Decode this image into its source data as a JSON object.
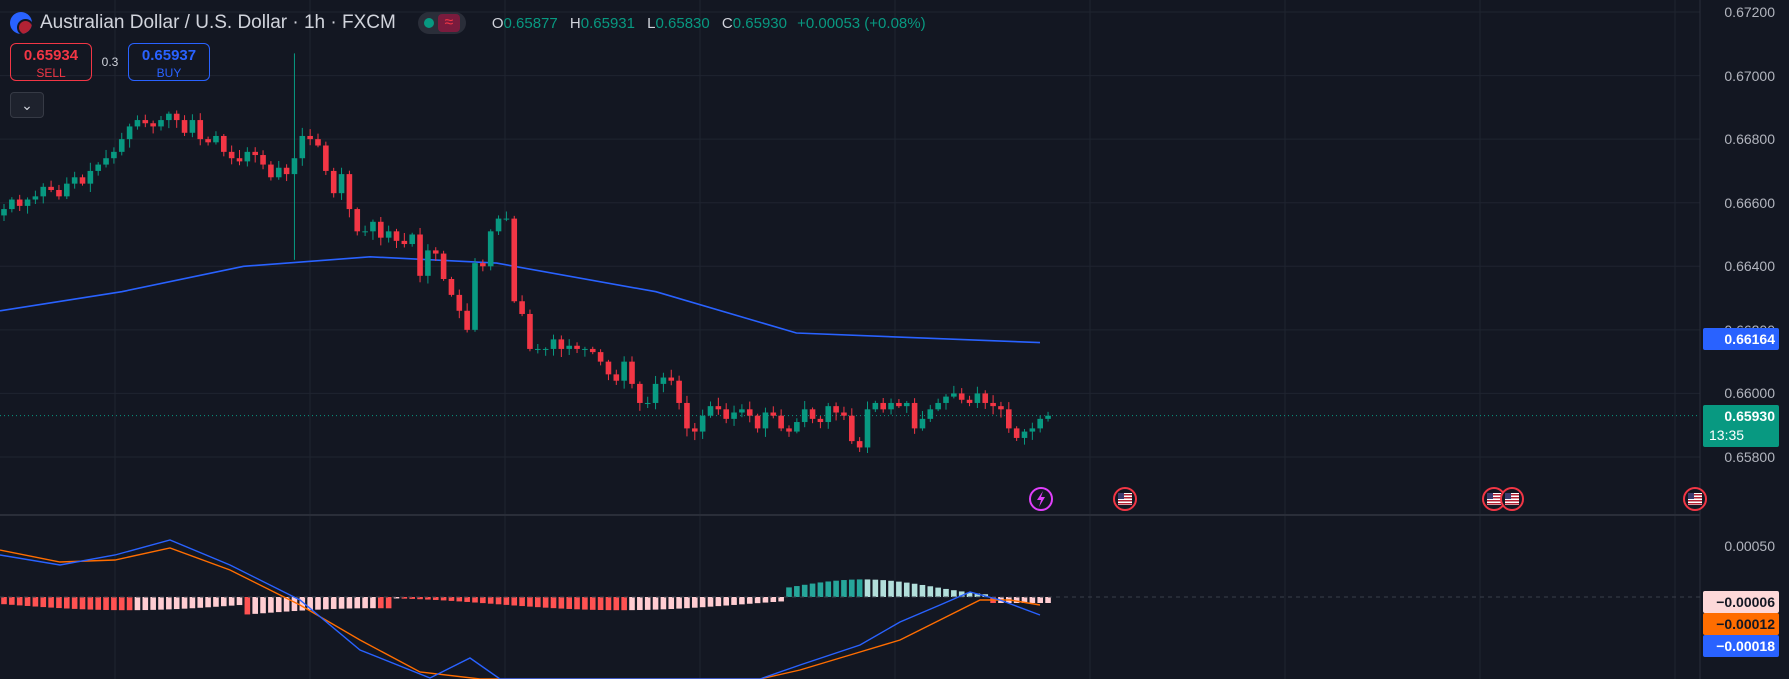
{
  "header": {
    "symbol_title": "Australian Dollar / U.S. Dollar · 1h · FXCM",
    "ohlc": {
      "o_label": "O",
      "o": "0.65877",
      "h_label": "H",
      "h": "0.65931",
      "l_label": "L",
      "l": "0.65830",
      "c_label": "C",
      "c": "0.65930",
      "change": "+0.00053 (+0.08%)"
    }
  },
  "trade": {
    "sell_price": "0.65934",
    "sell_label": "SELL",
    "spread": "0.3",
    "buy_price": "0.65937",
    "buy_label": "BUY"
  },
  "price_axis": {
    "ticks": [
      "0.67200",
      "0.67000",
      "0.66800",
      "0.66600",
      "0.66400",
      "0.66200",
      "0.66000",
      "0.65800"
    ],
    "ma_label": "0.66164",
    "last_price_label": "0.65930",
    "countdown": "13:35"
  },
  "macd_axis": {
    "ticks": [
      "0.00050"
    ],
    "hist_label": "−0.00006",
    "signal_label": "−0.00012",
    "macd_label": "−0.00018"
  },
  "colors": {
    "up": "#089981",
    "down": "#f23645",
    "ma": "#2962ff",
    "macd": "#2962ff",
    "signal": "#ff6d00",
    "bg": "#131722",
    "grid": "#1f2430"
  },
  "event_icons": [
    "flash-event-icon",
    "us-flag-icon",
    "us-flag-icon",
    "us-flag-icon",
    "us-flag-icon"
  ],
  "chart_data": [
    {
      "type": "candlestick",
      "ylim": [
        0.6574,
        0.6724
      ],
      "close_series_approx": [
        0.6658,
        0.6661,
        0.6659,
        0.6661,
        0.6662,
        0.6665,
        0.6664,
        0.6662,
        0.6666,
        0.6668,
        0.6666,
        0.667,
        0.6672,
        0.6674,
        0.6676,
        0.668,
        0.6684,
        0.6686,
        0.6685,
        0.6684,
        0.6686,
        0.6688,
        0.6686,
        0.6682,
        0.6686,
        0.668,
        0.6679,
        0.6681,
        0.6676,
        0.6674,
        0.6673,
        0.6676,
        0.6675,
        0.6672,
        0.6668,
        0.6671,
        0.6669,
        0.6674,
        0.6681,
        0.668,
        0.6678,
        0.667,
        0.6663,
        0.6669,
        0.6658,
        0.6651,
        0.6651,
        0.6654,
        0.6649,
        0.6651,
        0.6648,
        0.6647,
        0.665,
        0.6637,
        0.6645,
        0.6644,
        0.6636,
        0.6631,
        0.6626,
        0.662,
        0.6641,
        0.664,
        0.6651,
        0.6655,
        0.6655,
        0.6629,
        0.6625,
        0.6614,
        0.6614,
        0.6614,
        0.6617,
        0.6614,
        0.6615,
        0.6614,
        0.6614,
        0.6613,
        0.661,
        0.6606,
        0.6604,
        0.661,
        0.6603,
        0.6597,
        0.6597,
        0.6603,
        0.6605,
        0.6604,
        0.6597,
        0.6589,
        0.6588,
        0.6593,
        0.6596,
        0.6595,
        0.6592,
        0.6594,
        0.6595,
        0.6593,
        0.6589,
        0.6594,
        0.6593,
        0.6589,
        0.6588,
        0.6591,
        0.6595,
        0.6592,
        0.6591,
        0.6596,
        0.6594,
        0.6593,
        0.6585,
        0.6583,
        0.6595,
        0.6597,
        0.6595,
        0.6597,
        0.6596,
        0.6597,
        0.6589,
        0.6592,
        0.6595,
        0.6597,
        0.6599,
        0.66,
        0.6598,
        0.6597,
        0.66,
        0.6597,
        0.6596,
        0.6595,
        0.6589,
        0.6586,
        0.6588,
        0.6589,
        0.6592,
        0.6593
      ],
      "moving_average": {
        "last_value": 0.66164,
        "points": [
          [
            0,
            0.6626
          ],
          [
            26,
            0.6632
          ],
          [
            52,
            0.664
          ],
          [
            79,
            0.6643
          ],
          [
            106,
            0.6641
          ],
          [
            140,
            0.6632
          ],
          [
            170,
            0.6619
          ],
          [
            222,
            0.6616
          ]
        ]
      }
    },
    {
      "type": "macd",
      "histogram_sign_pattern": "negative until ~bar 100, then positive, small negative at end",
      "last_values": {
        "histogram": -6e-05,
        "signal": -0.00012,
        "macd": -0.00018
      }
    }
  ]
}
